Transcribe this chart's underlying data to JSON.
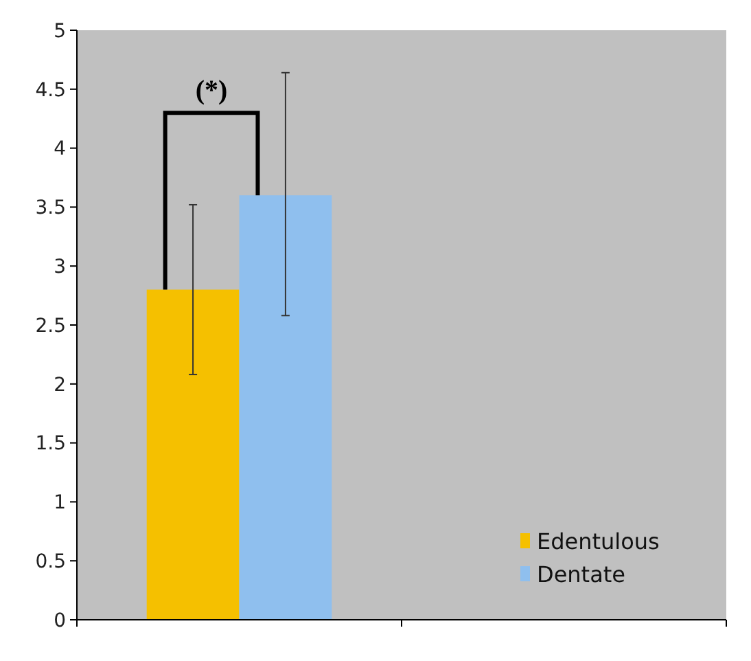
{
  "chart_data": {
    "type": "bar",
    "categories": [
      null,
      null
    ],
    "series": [
      {
        "name": "Edentulous",
        "color": "#f5c000",
        "values": [
          2.8,
          null
        ],
        "errors": [
          [
            2.08,
            3.52
          ],
          null
        ]
      },
      {
        "name": "Dentate",
        "color": "#8fbfee",
        "values": [
          3.6,
          null
        ],
        "errors": [
          [
            2.58,
            4.64
          ],
          null
        ]
      }
    ],
    "ylim": [
      0,
      5
    ],
    "yticks": [
      0,
      0.5,
      1,
      1.5,
      2,
      2.5,
      3,
      3.5,
      4,
      4.5,
      5
    ],
    "legend": "bottom right",
    "grid": false,
    "annotations": [
      "(*)"
    ]
  }
}
